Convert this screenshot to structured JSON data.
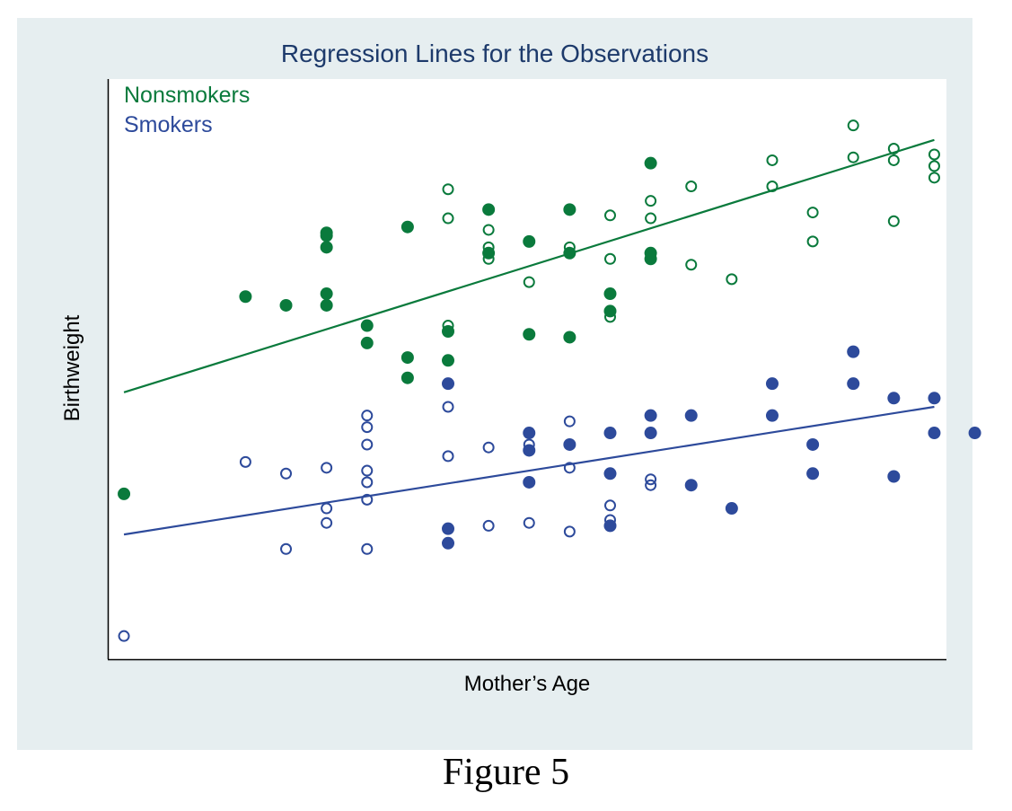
{
  "caption": "Figure 5",
  "chart_data": {
    "type": "scatter",
    "title": "Regression Lines for the Observations",
    "xlabel": "Mother’s Age",
    "ylabel": "Birthweight",
    "xlim": [
      -0.4,
      20.3
    ],
    "ylim": [
      0,
      100
    ],
    "grid": false,
    "legend": {
      "placement": "top-left",
      "entries": [
        "Nonsmokers",
        "Smokers"
      ]
    },
    "series": [
      {
        "name": "Nonsmokers",
        "color": "#0a7a3c",
        "filled": [
          [
            0,
            28.5
          ],
          [
            3,
            62.5
          ],
          [
            4,
            61
          ],
          [
            5,
            63
          ],
          [
            5,
            61
          ],
          [
            5,
            71
          ],
          [
            5,
            73.5
          ],
          [
            5,
            73
          ],
          [
            6,
            54.5
          ],
          [
            6,
            57.5
          ],
          [
            7,
            74.5
          ],
          [
            7,
            52
          ],
          [
            7,
            48.5
          ],
          [
            8,
            56.5
          ],
          [
            8,
            51.5
          ],
          [
            9,
            70
          ],
          [
            9,
            77.5
          ],
          [
            10,
            72
          ],
          [
            10,
            56
          ],
          [
            11,
            70
          ],
          [
            11,
            77.5
          ],
          [
            11,
            55.5
          ],
          [
            12,
            63
          ],
          [
            12,
            60
          ],
          [
            13,
            70
          ],
          [
            13,
            69
          ],
          [
            13,
            85.5
          ]
        ],
        "open": [
          [
            8,
            57.5
          ],
          [
            8,
            76
          ],
          [
            8,
            81
          ],
          [
            9,
            69
          ],
          [
            9,
            71
          ],
          [
            9,
            74
          ],
          [
            10,
            65
          ],
          [
            10,
            72
          ],
          [
            11,
            71
          ],
          [
            12,
            76.5
          ],
          [
            12,
            59
          ],
          [
            12,
            60
          ],
          [
            12,
            69
          ],
          [
            13,
            76
          ],
          [
            13,
            79
          ],
          [
            14,
            81.5
          ],
          [
            14,
            68
          ],
          [
            15,
            65.5
          ],
          [
            16,
            86
          ],
          [
            16,
            81.5
          ],
          [
            17,
            77
          ],
          [
            17,
            72
          ],
          [
            18,
            92
          ],
          [
            18,
            86.5
          ],
          [
            19,
            88
          ],
          [
            19,
            86
          ],
          [
            19,
            75.5
          ],
          [
            20,
            87
          ],
          [
            20,
            83
          ],
          [
            20,
            85
          ]
        ],
        "regression": {
          "x": [
            0,
            20
          ],
          "y": [
            46,
            89.5
          ]
        }
      },
      {
        "name": "Smokers",
        "color": "#2d4a9b",
        "filled": [
          [
            8,
            47.5
          ],
          [
            8,
            22.5
          ],
          [
            8,
            20
          ],
          [
            10,
            30.5
          ],
          [
            10,
            36
          ],
          [
            10,
            39
          ],
          [
            11,
            37
          ],
          [
            12,
            39
          ],
          [
            12,
            32
          ],
          [
            12,
            23
          ],
          [
            13,
            42
          ],
          [
            13,
            39
          ],
          [
            14,
            42
          ],
          [
            14,
            30
          ],
          [
            15,
            26
          ],
          [
            16,
            42
          ],
          [
            16,
            47.5
          ],
          [
            17,
            37
          ],
          [
            17,
            32
          ],
          [
            18,
            53
          ],
          [
            18,
            47.5
          ],
          [
            19,
            45
          ],
          [
            19,
            31.5
          ],
          [
            20,
            45
          ],
          [
            20,
            39
          ],
          [
            21,
            39
          ]
        ],
        "open": [
          [
            0,
            4
          ],
          [
            3,
            34
          ],
          [
            4,
            32
          ],
          [
            4,
            19
          ],
          [
            5,
            33
          ],
          [
            5,
            26
          ],
          [
            5,
            23.5
          ],
          [
            6,
            32.5
          ],
          [
            6,
            30.5
          ],
          [
            6,
            27.5
          ],
          [
            6,
            40
          ],
          [
            6,
            42
          ],
          [
            6,
            37
          ],
          [
            6,
            19
          ],
          [
            8,
            43.5
          ],
          [
            8,
            35
          ],
          [
            9,
            36.5
          ],
          [
            9,
            23
          ],
          [
            10,
            37
          ],
          [
            10,
            23.5
          ],
          [
            11,
            33
          ],
          [
            11,
            41
          ],
          [
            11,
            22
          ],
          [
            12,
            26.5
          ],
          [
            12,
            24
          ],
          [
            13,
            31
          ],
          [
            13,
            30
          ]
        ],
        "regression": {
          "x": [
            0,
            20
          ],
          "y": [
            21.5,
            43.5
          ]
        }
      }
    ]
  }
}
